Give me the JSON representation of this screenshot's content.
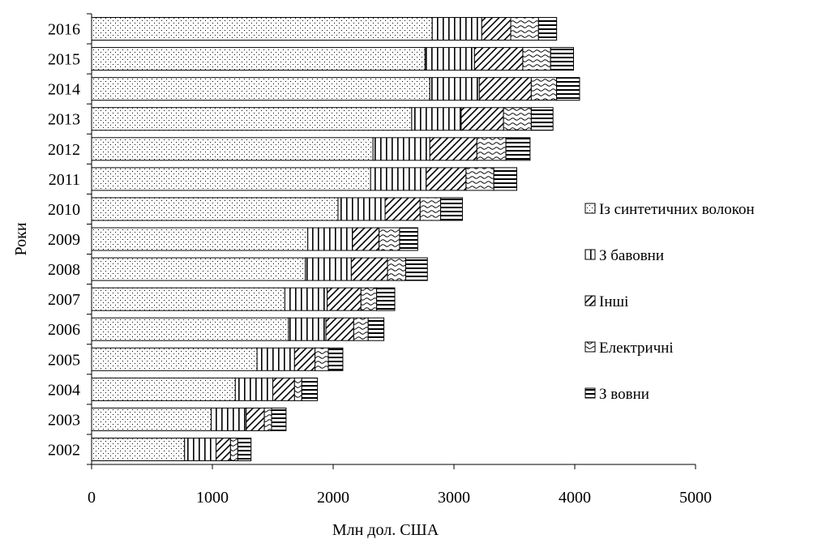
{
  "chart_data": {
    "type": "bar",
    "orientation": "horizontal",
    "stacked": true,
    "categories": [
      "2002",
      "2003",
      "2004",
      "2005",
      "2006",
      "2007",
      "2008",
      "2009",
      "2010",
      "2011",
      "2012",
      "2013",
      "2014",
      "2015",
      "2016"
    ],
    "series": [
      {
        "name": "Із синтетичних волокон",
        "pattern": "dots",
        "values": [
          770,
          990,
          1190,
          1370,
          1630,
          1600,
          1770,
          1790,
          2040,
          2310,
          2330,
          2650,
          2800,
          2760,
          2820
        ]
      },
      {
        "name": "З бавовни",
        "pattern": "vertical-lines",
        "values": [
          260,
          290,
          310,
          310,
          310,
          350,
          380,
          370,
          390,
          460,
          470,
          410,
          410,
          410,
          410
        ]
      },
      {
        "name": "Інші",
        "pattern": "diagonal-lines",
        "values": [
          120,
          150,
          180,
          170,
          230,
          280,
          300,
          220,
          290,
          330,
          390,
          350,
          430,
          400,
          240
        ]
      },
      {
        "name": "Електричні",
        "pattern": "waves",
        "values": [
          60,
          60,
          60,
          110,
          120,
          130,
          150,
          170,
          170,
          230,
          240,
          230,
          210,
          230,
          230
        ]
      },
      {
        "name": "З вовни",
        "pattern": "horizontal-lines",
        "values": [
          110,
          120,
          130,
          120,
          130,
          150,
          180,
          150,
          180,
          190,
          200,
          180,
          190,
          190,
          150
        ]
      }
    ],
    "xlim": [
      0,
      5000
    ],
    "xticks": [
      "0",
      "1000",
      "2000",
      "3000",
      "4000",
      "5000"
    ],
    "xlabel": "Млн дол. США",
    "ylabel": "Роки",
    "title": "",
    "legend_position": "right",
    "grid": false
  }
}
